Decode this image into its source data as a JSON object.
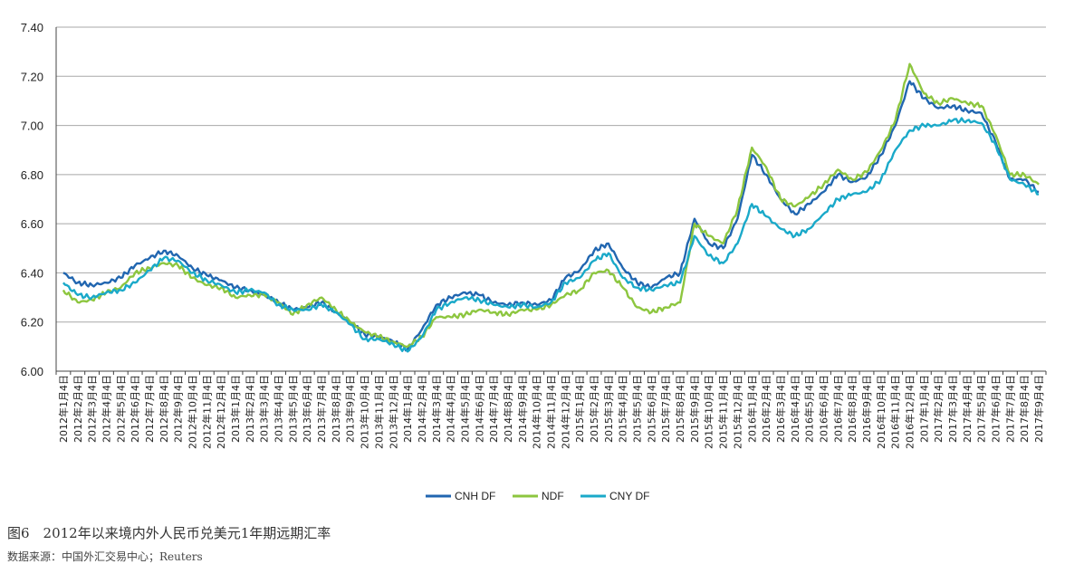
{
  "chart_data": {
    "type": "line",
    "title": "",
    "xlabel": "",
    "ylabel": "",
    "ylim": [
      6.0,
      7.4
    ],
    "yticks": [
      "6.00",
      "6.20",
      "6.40",
      "6.60",
      "6.80",
      "7.00",
      "7.20",
      "7.40"
    ],
    "grid": "horizontal",
    "legend": "bottom-center",
    "categories": [
      "2012年1月4日",
      "2012年2月4日",
      "2012年3月4日",
      "2012年4月4日",
      "2012年5月4日",
      "2012年6月4日",
      "2012年7月4日",
      "2012年8月4日",
      "2012年9月4日",
      "2012年10月4日",
      "2012年11月4日",
      "2012年12月4日",
      "2013年1月4日",
      "2013年2月4日",
      "2013年3月4日",
      "2013年4月4日",
      "2013年5月4日",
      "2013年6月4日",
      "2013年7月4日",
      "2013年8月4日",
      "2013年9月4日",
      "2013年10月4日",
      "2013年11月4日",
      "2013年12月4日",
      "2014年1月4日",
      "2014年2月4日",
      "2014年3月4日",
      "2014年4月4日",
      "2014年5月4日",
      "2014年6月4日",
      "2014年7月4日",
      "2014年8月4日",
      "2014年9月4日",
      "2014年10月4日",
      "2014年11月4日",
      "2014年12月4日",
      "2015年1月4日",
      "2015年2月4日",
      "2015年3月4日",
      "2015年4月4日",
      "2015年5月4日",
      "2015年6月4日",
      "2015年7月4日",
      "2015年8月4日",
      "2015年9月4日",
      "2015年10月4日",
      "2015年11月4日",
      "2015年12月4日",
      "2016年1月4日",
      "2016年2月4日",
      "2016年3月4日",
      "2016年4月4日",
      "2016年5月4日",
      "2016年6月4日",
      "2016年7月4日",
      "2016年8月4日",
      "2016年9月4日",
      "2016年10月4日",
      "2016年11月4日",
      "2016年12月4日",
      "2017年1月4日",
      "2017年2月4日",
      "2017年3月4日",
      "2017年4月4日",
      "2017年5月4日",
      "2017年6月4日",
      "2017年7月4日",
      "2017年8月4日",
      "2017年9月4日"
    ],
    "series": [
      {
        "name": "CNH DF",
        "color": "#2166b0",
        "values": [
          6.4,
          6.36,
          6.35,
          6.36,
          6.38,
          6.43,
          6.46,
          6.49,
          6.47,
          6.42,
          6.39,
          6.37,
          6.34,
          6.33,
          6.31,
          6.28,
          6.25,
          6.26,
          6.28,
          6.24,
          6.2,
          6.15,
          6.14,
          6.12,
          6.09,
          6.17,
          6.27,
          6.3,
          6.32,
          6.31,
          6.28,
          6.27,
          6.28,
          6.27,
          6.29,
          6.38,
          6.41,
          6.49,
          6.52,
          6.42,
          6.36,
          6.34,
          6.38,
          6.4,
          6.62,
          6.52,
          6.5,
          6.62,
          6.88,
          6.8,
          6.7,
          6.64,
          6.68,
          6.73,
          6.8,
          6.77,
          6.79,
          6.88,
          7.0,
          7.18,
          7.11,
          7.07,
          7.08,
          7.06,
          7.05,
          6.93,
          6.78,
          6.78,
          6.73
        ]
      },
      {
        "name": "NDF",
        "color": "#8dc63f",
        "values": [
          6.33,
          6.28,
          6.29,
          6.32,
          6.34,
          6.4,
          6.42,
          6.44,
          6.43,
          6.38,
          6.35,
          6.34,
          6.3,
          6.31,
          6.31,
          6.28,
          6.23,
          6.27,
          6.3,
          6.25,
          6.2,
          6.16,
          6.14,
          6.12,
          6.1,
          6.14,
          6.22,
          6.22,
          6.23,
          6.25,
          6.24,
          6.23,
          6.25,
          6.25,
          6.27,
          6.31,
          6.33,
          6.4,
          6.41,
          6.34,
          6.26,
          6.24,
          6.26,
          6.28,
          6.6,
          6.55,
          6.52,
          6.66,
          6.91,
          6.83,
          6.7,
          6.67,
          6.71,
          6.76,
          6.82,
          6.78,
          6.81,
          6.9,
          7.02,
          7.25,
          7.13,
          7.09,
          7.11,
          7.09,
          7.08,
          6.96,
          6.8,
          6.8,
          6.76
        ]
      },
      {
        "name": "CNY DF",
        "color": "#1aa9c9",
        "values": [
          6.36,
          6.31,
          6.3,
          6.32,
          6.33,
          6.36,
          6.41,
          6.46,
          6.45,
          6.4,
          6.37,
          6.35,
          6.32,
          6.33,
          6.32,
          6.27,
          6.25,
          6.25,
          6.27,
          6.24,
          6.19,
          6.13,
          6.13,
          6.11,
          6.08,
          6.14,
          6.25,
          6.28,
          6.3,
          6.29,
          6.27,
          6.26,
          6.27,
          6.26,
          6.28,
          6.36,
          6.38,
          6.45,
          6.48,
          6.38,
          6.34,
          6.33,
          6.35,
          6.36,
          6.55,
          6.47,
          6.44,
          6.52,
          6.68,
          6.63,
          6.58,
          6.55,
          6.58,
          6.64,
          6.7,
          6.72,
          6.73,
          6.78,
          6.9,
          6.98,
          7.0,
          7.0,
          7.02,
          7.02,
          7.01,
          6.92,
          6.78,
          6.76,
          6.72
        ]
      }
    ]
  },
  "caption": "图6　2012年以来境内外人民币兑美元1年期远期汇率",
  "source": "数据来源：中国外汇交易中心；Reuters"
}
